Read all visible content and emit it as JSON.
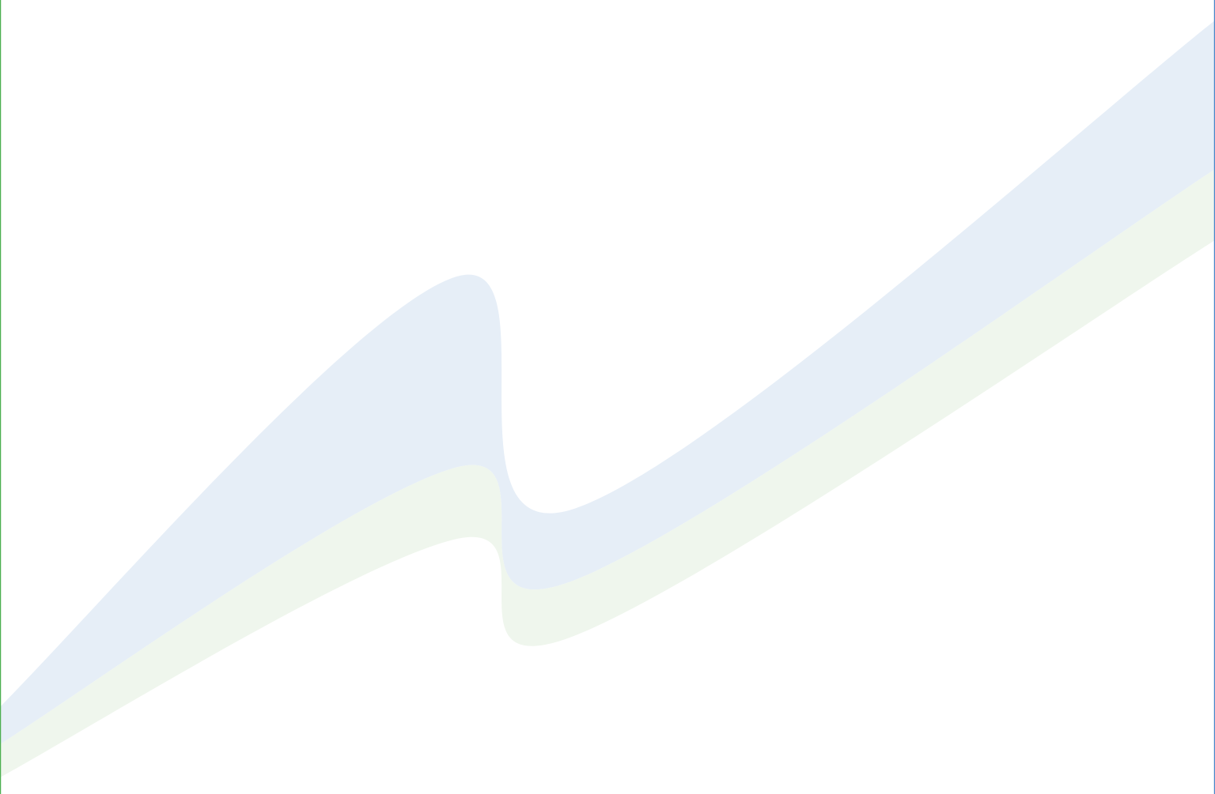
{
  "chart_data": {
    "type": "area",
    "title": "",
    "xlabel": "",
    "ylabel": "",
    "grid": false,
    "legend": "none",
    "x": [
      0,
      1,
      2,
      3
    ],
    "xlim": [
      0,
      3
    ],
    "ylim": [
      0,
      100
    ],
    "series": [
      {
        "color": "#4a86c8",
        "fill": "#e6eef7",
        "lower": [
          5,
          41,
          27,
          80
        ],
        "upper": [
          9,
          65,
          36,
          99
        ]
      },
      {
        "color": "#5cb85c",
        "fill": "#eff6ed",
        "lower": [
          1,
          32,
          20,
          71
        ],
        "upper": [
          5,
          41,
          27,
          80
        ]
      }
    ],
    "frame": {
      "left_color": "#4caf50",
      "right_color": "#4a86c8"
    }
  }
}
